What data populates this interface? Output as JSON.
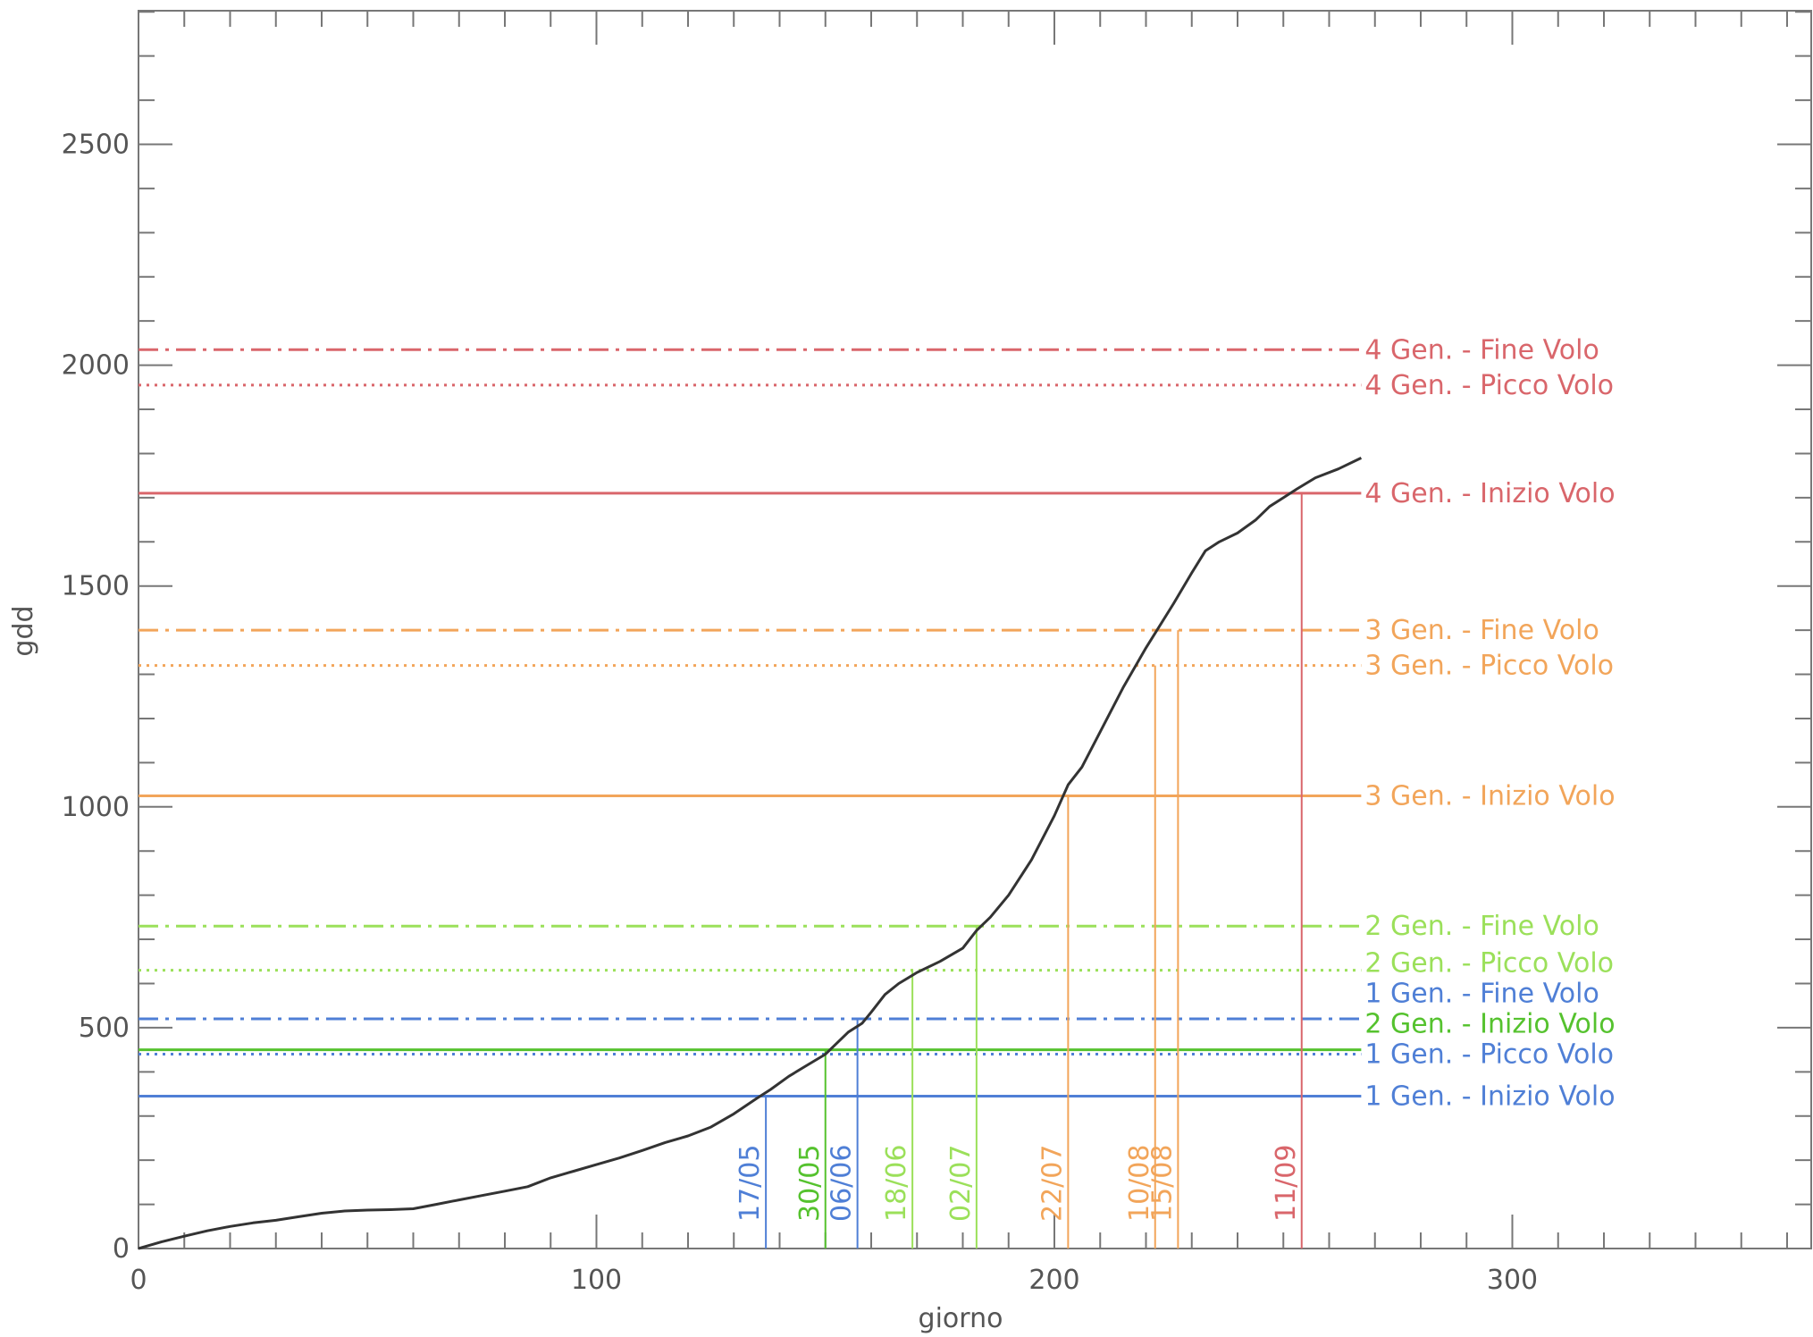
{
  "chart_data": {
    "type": "line",
    "title": "",
    "xlabel": "giorno",
    "ylabel": "gdd",
    "xlim": [
      0,
      365
    ],
    "ylim": [
      0,
      2800
    ],
    "x_ticks": [
      0,
      100,
      200,
      300
    ],
    "y_ticks": [
      0,
      500,
      1000,
      1500,
      2000,
      2500
    ],
    "grid": false,
    "colors": {
      "curve": "#333333",
      "gen1": "#4f7fd6",
      "gen2_start": "#55c22e",
      "gen2": "#9be05a",
      "gen3": "#f2a55a",
      "gen4": "#d9666b",
      "axis": "#777777"
    },
    "series": [
      {
        "x": [
          0,
          5,
          10,
          15,
          20,
          25,
          30,
          35,
          40,
          45,
          50,
          55,
          60,
          65,
          70,
          75,
          80,
          85,
          90,
          95,
          100,
          105,
          110,
          115,
          120,
          125,
          130,
          135,
          138,
          142,
          146,
          150,
          152,
          155,
          158,
          160,
          163,
          166,
          170,
          175,
          180,
          183,
          186,
          190,
          195,
          200,
          203,
          206,
          210,
          215,
          220,
          226,
          230,
          233,
          236,
          240,
          244,
          247,
          250,
          253,
          257,
          262,
          267
        ],
        "y": [
          0,
          15,
          28,
          40,
          50,
          58,
          64,
          72,
          80,
          85,
          87,
          88,
          90,
          100,
          110,
          120,
          130,
          140,
          160,
          175,
          190,
          205,
          222,
          240,
          255,
          275,
          305,
          340,
          360,
          390,
          415,
          440,
          460,
          490,
          510,
          535,
          575,
          600,
          625,
          650,
          680,
          720,
          750,
          800,
          880,
          980,
          1050,
          1090,
          1170,
          1270,
          1360,
          1460,
          1530,
          1580,
          1600,
          1620,
          1650,
          1680,
          1700,
          1720,
          1745,
          1765,
          1790
        ]
      }
    ],
    "thresholds": [
      {
        "label": "1 Gen. - Inizio Volo",
        "y": 345,
        "style": "solid",
        "color": "#4f7fd6"
      },
      {
        "label": "1 Gen. - Picco Volo",
        "y": 440,
        "style": "dotted",
        "color": "#4f7fd6"
      },
      {
        "label": "1 Gen. - Fine Volo",
        "y": 520,
        "style": "dashdot",
        "color": "#4f7fd6"
      },
      {
        "label": "2 Gen. - Inizio Volo",
        "y": 450,
        "style": "solid",
        "color": "#55c22e"
      },
      {
        "label": "2 Gen. - Picco Volo",
        "y": 630,
        "style": "dotted",
        "color": "#9be05a"
      },
      {
        "label": "2 Gen. - Fine Volo",
        "y": 730,
        "style": "dashdot",
        "color": "#9be05a"
      },
      {
        "label": "3 Gen. - Inizio Volo",
        "y": 1025,
        "style": "solid",
        "color": "#f2a55a"
      },
      {
        "label": "3 Gen. - Picco Volo",
        "y": 1320,
        "style": "dotted",
        "color": "#f2a55a"
      },
      {
        "label": "3 Gen. - Fine Volo",
        "y": 1400,
        "style": "dashdot",
        "color": "#f2a55a"
      },
      {
        "label": "4 Gen. - Inizio Volo",
        "y": 1710,
        "style": "solid",
        "color": "#d9666b"
      },
      {
        "label": "4 Gen. - Picco Volo",
        "y": 1955,
        "style": "dotted",
        "color": "#d9666b"
      },
      {
        "label": "4 Gen. - Fine Volo",
        "y": 2035,
        "style": "dashdot",
        "color": "#d9666b"
      }
    ],
    "threshold_x_end": 267,
    "date_markers": [
      {
        "label": "17/05",
        "x": 137,
        "y": 345,
        "color": "#4f7fd6"
      },
      {
        "label": "30/05",
        "x": 150,
        "y": 450,
        "color": "#55c22e"
      },
      {
        "label": "06/06",
        "x": 157,
        "y": 520,
        "color": "#4f7fd6"
      },
      {
        "label": "18/06",
        "x": 169,
        "y": 630,
        "color": "#9be05a"
      },
      {
        "label": "02/07",
        "x": 183,
        "y": 730,
        "color": "#9be05a"
      },
      {
        "label": "22/07",
        "x": 203,
        "y": 1025,
        "color": "#f2a55a"
      },
      {
        "label": "10/08",
        "x": 222,
        "y": 1320,
        "color": "#f2a55a"
      },
      {
        "label": "15/08",
        "x": 227,
        "y": 1400,
        "color": "#f2a55a"
      },
      {
        "label": "11/09",
        "x": 254,
        "y": 1710,
        "color": "#d9666b"
      }
    ]
  }
}
